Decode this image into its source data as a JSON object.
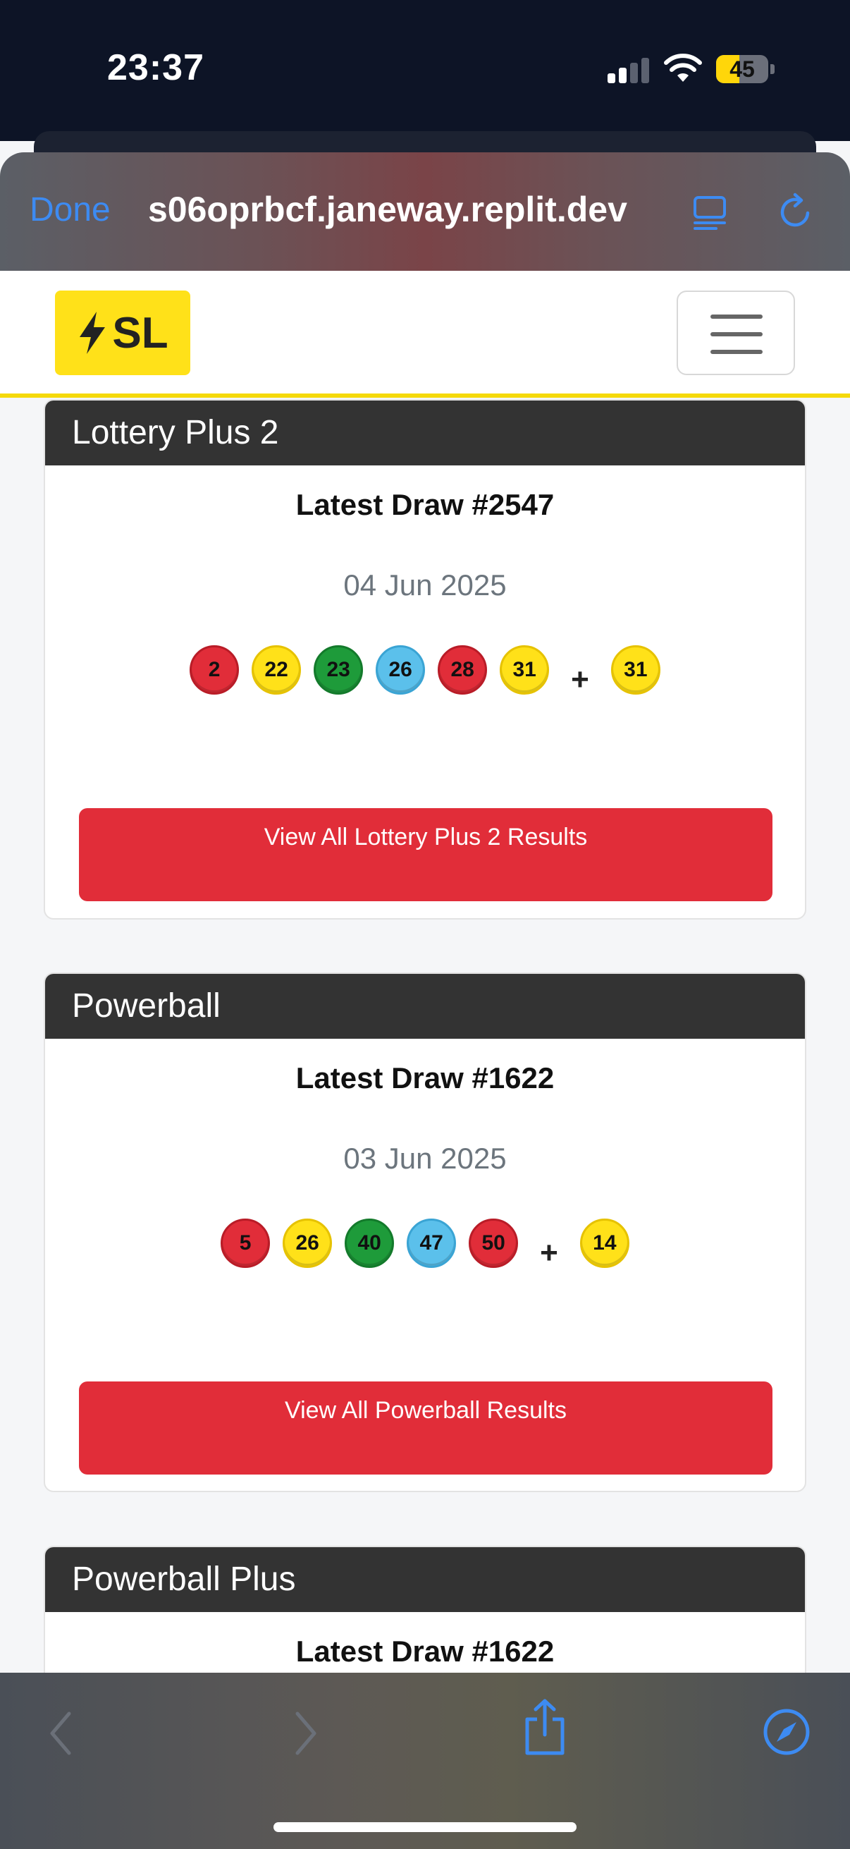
{
  "status_bar": {
    "time": "23:37",
    "battery": "45",
    "battery_level": 0.45
  },
  "browser": {
    "done_label": "Done",
    "url": "s06oprbcf.janeway.replit.dev",
    "accent_color": "#3d8bf2"
  },
  "navbar": {
    "logo_text": "SL",
    "brand_color": "#ffe119"
  },
  "cards": [
    {
      "title": "Lottery Plus 2",
      "draw_title": "Latest Draw #2547",
      "date": "04 Jun 2025",
      "balls": [
        {
          "n": "2",
          "color": "red"
        },
        {
          "n": "22",
          "color": "yellow"
        },
        {
          "n": "23",
          "color": "green"
        },
        {
          "n": "26",
          "color": "blue"
        },
        {
          "n": "28",
          "color": "red"
        },
        {
          "n": "31",
          "color": "yellow"
        }
      ],
      "plus": "+",
      "bonus": {
        "n": "31",
        "color": "yellow"
      },
      "button": "View All Lottery Plus 2 Results"
    },
    {
      "title": "Powerball",
      "draw_title": "Latest Draw #1622",
      "date": "03 Jun 2025",
      "balls": [
        {
          "n": "5",
          "color": "red"
        },
        {
          "n": "26",
          "color": "yellow"
        },
        {
          "n": "40",
          "color": "green"
        },
        {
          "n": "47",
          "color": "blue"
        },
        {
          "n": "50",
          "color": "red"
        }
      ],
      "plus": "+",
      "bonus": {
        "n": "14",
        "color": "yellow"
      },
      "button": "View All Powerball Results"
    },
    {
      "title": "Powerball Plus",
      "draw_title": "Latest Draw #1622"
    }
  ],
  "toolbar": {
    "icons": [
      "back-icon",
      "forward-icon",
      "share-icon",
      "compass-icon"
    ]
  }
}
